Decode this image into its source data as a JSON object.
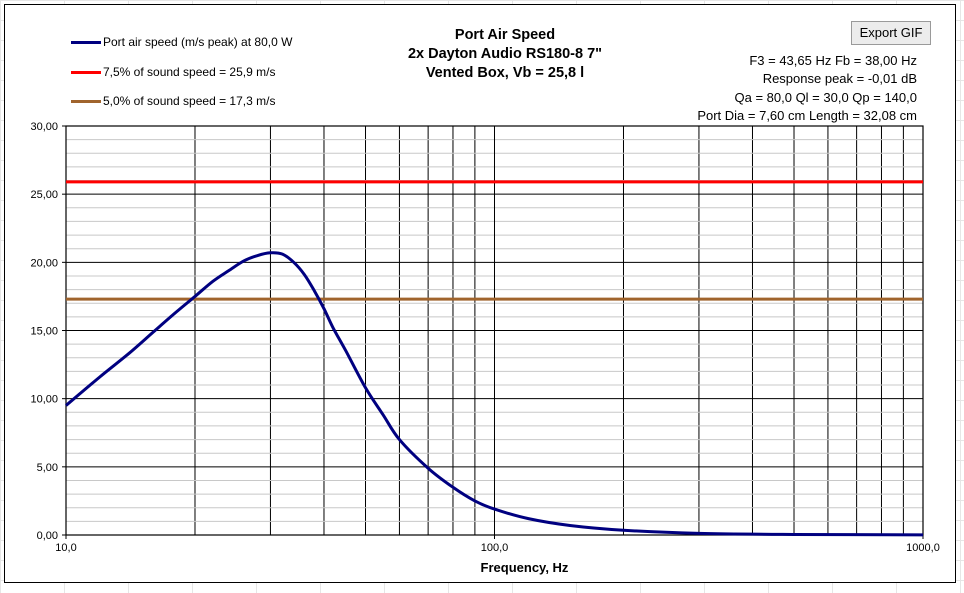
{
  "export_button_label": "Export GIF",
  "info_lines": [
    "F3 = 43,65 Hz  Fb = 38,00 Hz",
    "Response peak = -0,01 dB",
    "Qa = 80,0  Ql = 30,0  Qp = 140,0",
    "Port Dia = 7,60 cm  Length = 32,08 cm"
  ],
  "chart_data": {
    "type": "line",
    "title": [
      "Port Air Speed",
      "2x Dayton Audio RS180-8 7\"",
      "Vented Box, Vb = 25,8 l"
    ],
    "xlabel": "Frequency, Hz",
    "ylabel": "",
    "xscale": "log",
    "xlim": [
      10,
      1000
    ],
    "ylim": [
      0,
      30
    ],
    "x_tick_labels": [
      "10,0",
      "100,0",
      "1000,0"
    ],
    "x_tick_values": [
      10,
      100,
      1000
    ],
    "y_tick_labels": [
      "0,00",
      "5,00",
      "10,00",
      "15,00",
      "20,00",
      "25,00",
      "30,00"
    ],
    "y_tick_values": [
      0,
      5,
      10,
      15,
      20,
      25,
      30
    ],
    "grid": true,
    "legend_position": "top-left",
    "series": [
      {
        "name": "Port air speed (m/s peak) at 80,0 W",
        "color": "#000080",
        "x": [
          10,
          12,
          14,
          16,
          18,
          20,
          22,
          24,
          26,
          28,
          30,
          32,
          34,
          36,
          38,
          40,
          42,
          45,
          50,
          55,
          60,
          70,
          80,
          90,
          100,
          120,
          150,
          200,
          300,
          500,
          1000
        ],
        "y": [
          9.5,
          11.6,
          13.3,
          14.9,
          16.3,
          17.5,
          18.6,
          19.4,
          20.1,
          20.5,
          20.7,
          20.6,
          20.0,
          19.1,
          17.9,
          16.6,
          15.2,
          13.5,
          10.8,
          8.8,
          7.0,
          4.9,
          3.5,
          2.5,
          1.9,
          1.2,
          0.7,
          0.35,
          0.12,
          0.04,
          0.01
        ]
      },
      {
        "name": "7,5% of sound speed = 25,9 m/s",
        "color": "#ff0000",
        "x": [
          10,
          1000
        ],
        "y": [
          25.9,
          25.9
        ]
      },
      {
        "name": "5,0% of sound speed = 17,3 m/s",
        "color": "#a0642d",
        "x": [
          10,
          1000
        ],
        "y": [
          17.3,
          17.3
        ]
      }
    ]
  }
}
